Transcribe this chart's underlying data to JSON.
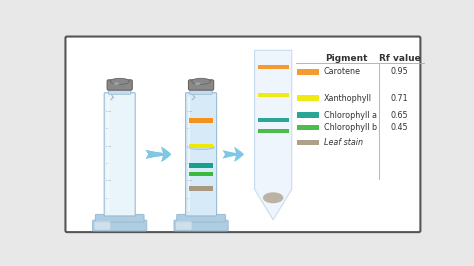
{
  "background_color": "#e8e8e8",
  "outer_bg": "#ffffff",
  "border_color": "#555555",
  "pigments": [
    "Carotene",
    "Xanthophyll",
    "Chlorophyll a",
    "Chlorophyll b",
    "Leaf stain"
  ],
  "rf_values": [
    "0.95",
    "0.71",
    "0.65",
    "0.45",
    ""
  ],
  "band_colors": [
    "#F5921E",
    "#F0E800",
    "#1A9E8E",
    "#3DB83D",
    "#A89880"
  ],
  "header_pigment": "Pigment",
  "header_rf": "Rf value",
  "arrow_color": "#7EC8E3",
  "arrow_dark": "#5AAFD0",
  "cyl_body_color": "#D6EAF8",
  "cyl_body_empty": "#EAF4FB",
  "cyl_border": "#9BBBD4",
  "cyl_cap_color": "#888888",
  "cyl_cap_dark": "#666666",
  "cyl_base_color": "#AECDE0",
  "cyl_base_dark": "#7AAAC0",
  "strip_bg": "#EEF5FC",
  "strip_border": "#C8DCF0",
  "table_line": "#aaaaaa",
  "text_color": "#333333"
}
